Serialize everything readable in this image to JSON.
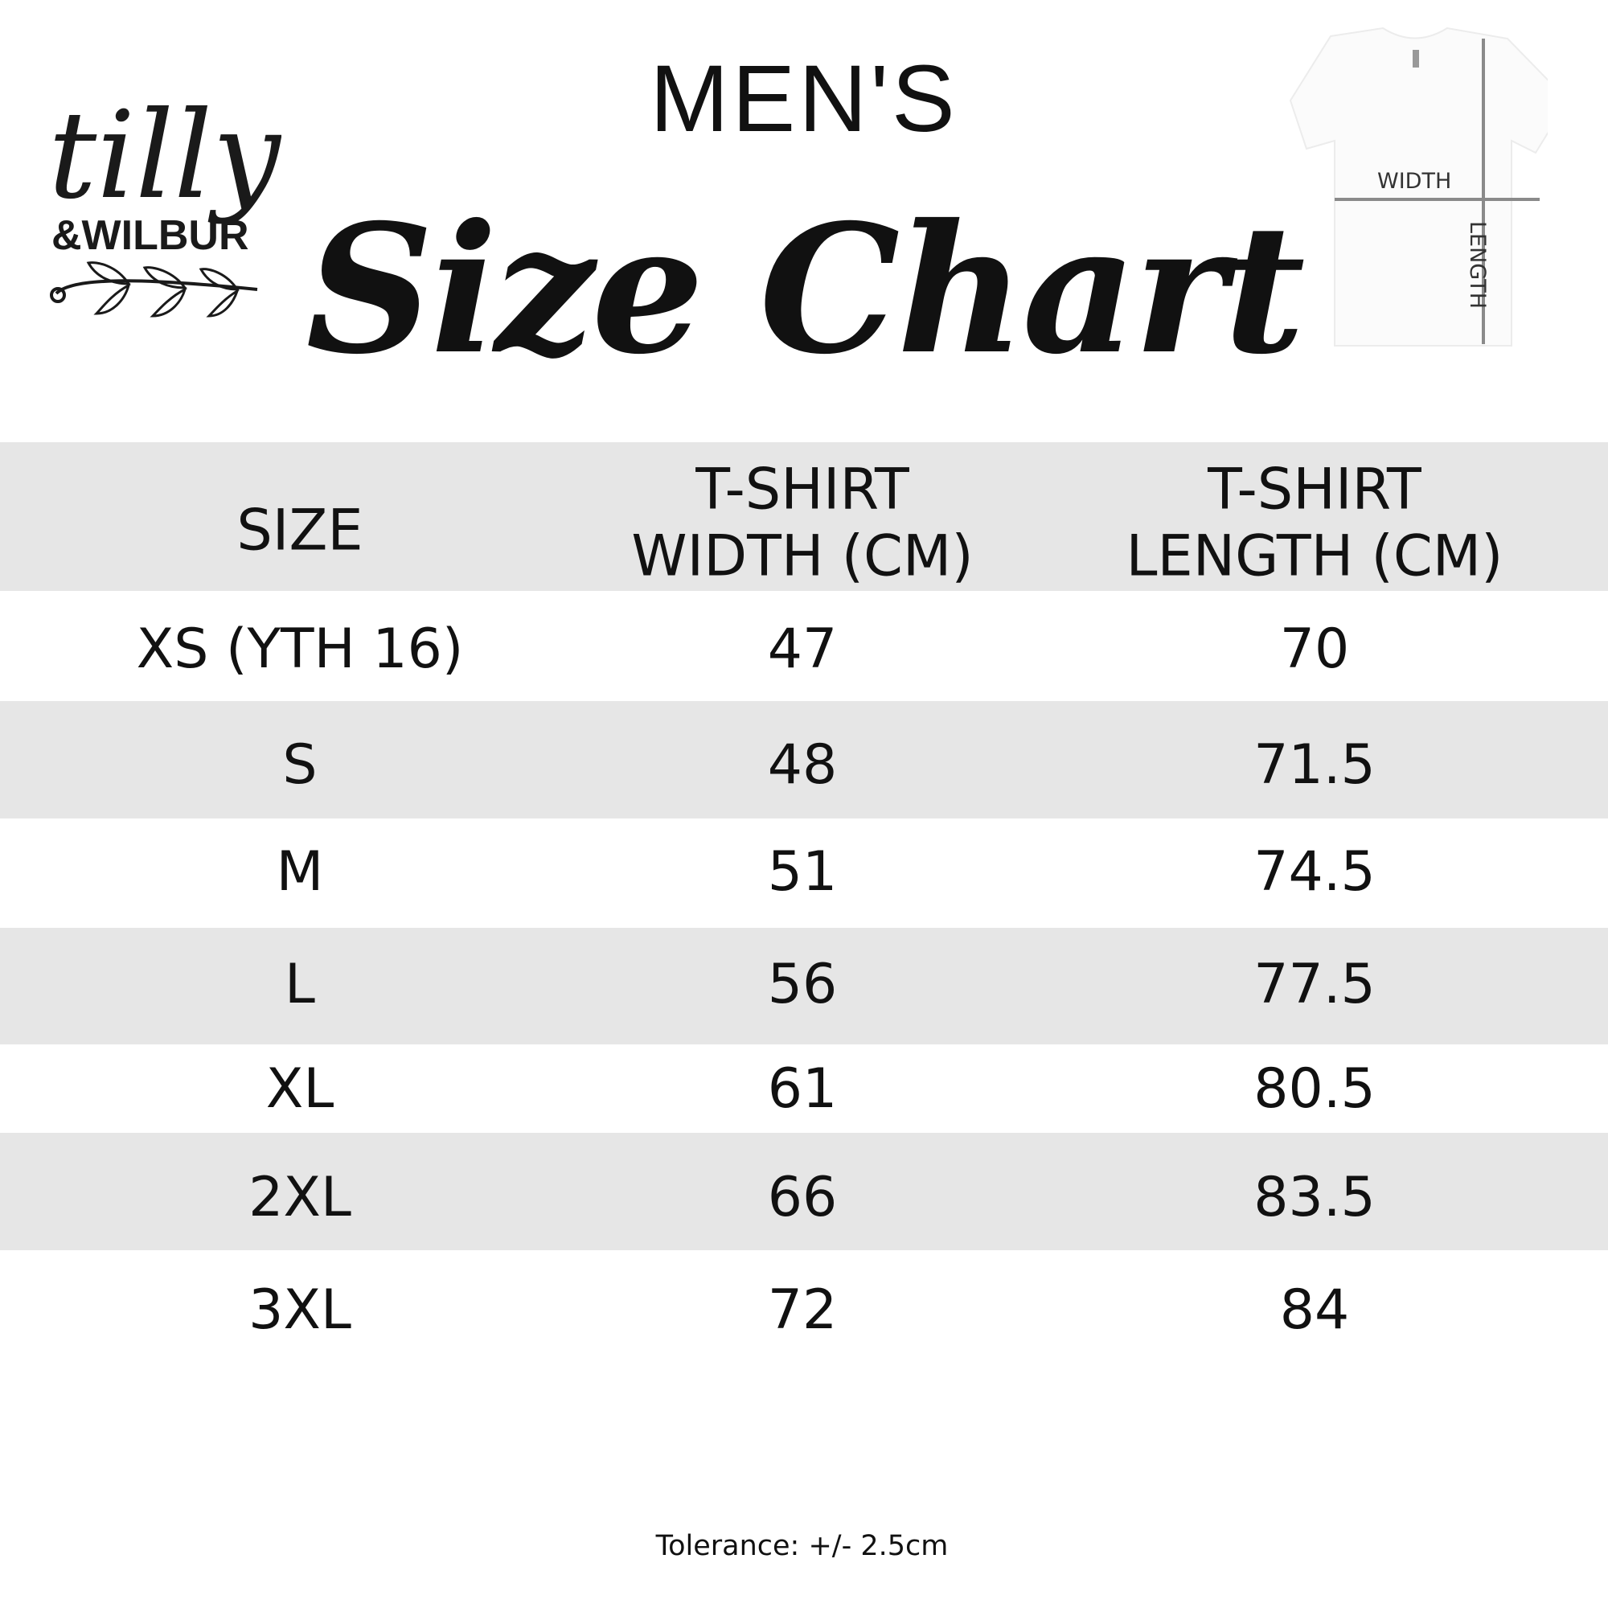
{
  "brand": {
    "logo_text": "tilly & WILBUR"
  },
  "header": {
    "subtitle": "MEN'S",
    "title": "Size Chart"
  },
  "diagram": {
    "width_label": "WIDTH",
    "length_label": "LENGTH"
  },
  "table": {
    "columns": [
      "SIZE",
      "T-SHIRT\nWIDTH (CM)",
      "T-SHIRT\nLENGTH (CM)"
    ],
    "rows": [
      [
        "XS (YTH 16)",
        "47",
        "70"
      ],
      [
        "S",
        "48",
        "71.5"
      ],
      [
        "M",
        "51",
        "74.5"
      ],
      [
        "L",
        "56",
        "77.5"
      ],
      [
        "XL",
        "61",
        "80.5"
      ],
      [
        "2XL",
        "66",
        "83.5"
      ],
      [
        "3XL",
        "72",
        "84"
      ]
    ]
  },
  "footer": {
    "tolerance": "Tolerance: +/- 2.5cm"
  },
  "colors": {
    "band": "#e6e6e6",
    "text": "#111111",
    "measure_line": "#8a8a8a"
  }
}
